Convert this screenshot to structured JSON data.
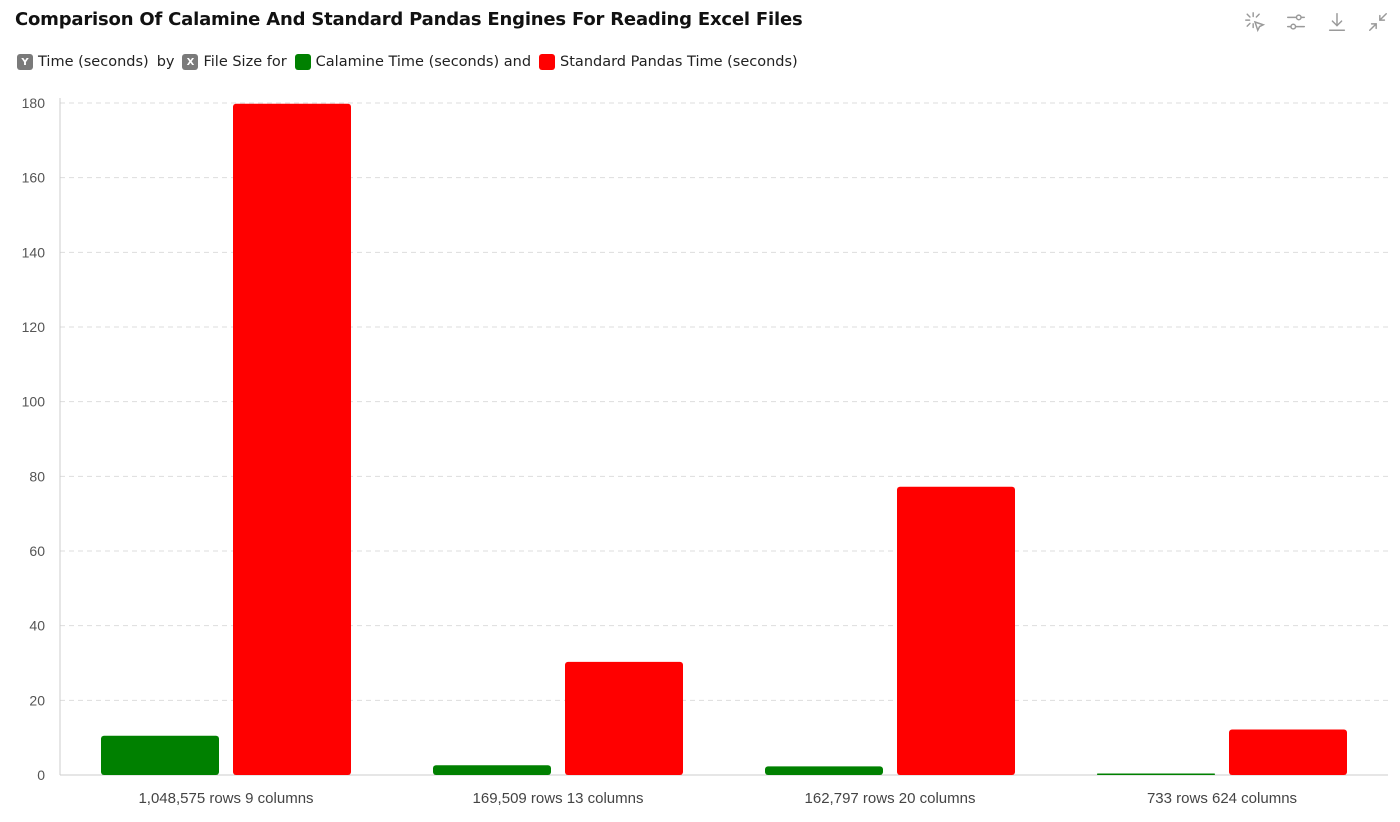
{
  "header": {
    "title": "Comparison Of Calamine And Standard Pandas Engines For Reading Excel Files"
  },
  "toolbar": {
    "icons": [
      "select-icon",
      "filter-settings-icon",
      "download-icon",
      "collapse-icon"
    ]
  },
  "legend": {
    "y_badge": "Y",
    "y_text": "Time (seconds)",
    "by_text": "by",
    "x_badge": "X",
    "x_text": "File Size for",
    "series1": "Calamine Time (seconds) and",
    "series2": "Standard Pandas Time (seconds)"
  },
  "colors": {
    "calamine": "#008000",
    "standard": "#ff0000",
    "grid": "#dddddd",
    "axis": "#cccccc"
  },
  "chart_data": {
    "type": "bar",
    "title": "Comparison Of Calamine And Standard Pandas Engines For Reading Excel Files",
    "xlabel": "File Size",
    "ylabel": "Time (seconds)",
    "categories": [
      "1,048,575 rows 9 columns",
      "169,509 rows 13 columns",
      "162,797 rows 20 columns",
      "733 rows 624 columns"
    ],
    "series": [
      {
        "name": "Calamine Time (seconds)",
        "values": [
          10.5,
          2.6,
          2.3,
          0.4
        ],
        "color": "#008000"
      },
      {
        "name": "Standard Pandas Time (seconds)",
        "values": [
          179.8,
          30.3,
          77.2,
          12.2
        ],
        "color": "#ff0000"
      }
    ],
    "ylim": [
      0,
      180
    ],
    "yticks": [
      0,
      20,
      40,
      60,
      80,
      100,
      120,
      140,
      160,
      180
    ],
    "grid": true,
    "legend_position": "top-left"
  }
}
